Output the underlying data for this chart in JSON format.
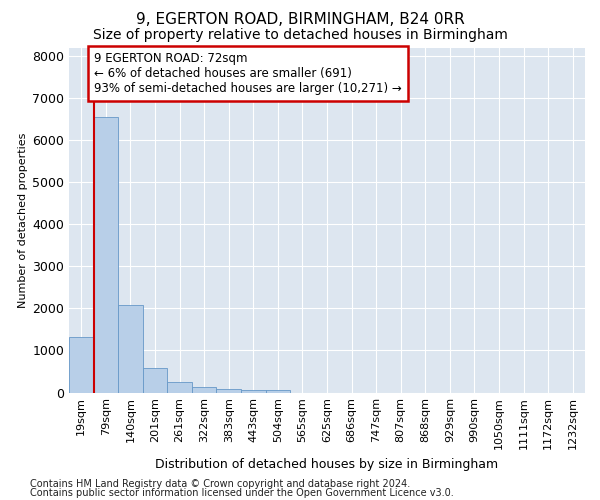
{
  "title": "9, EGERTON ROAD, BIRMINGHAM, B24 0RR",
  "subtitle": "Size of property relative to detached houses in Birmingham",
  "xlabel": "Distribution of detached houses by size in Birmingham",
  "ylabel": "Number of detached properties",
  "footnote1": "Contains HM Land Registry data © Crown copyright and database right 2024.",
  "footnote2": "Contains public sector information licensed under the Open Government Licence v3.0.",
  "annotation_title": "9 EGERTON ROAD: 72sqm",
  "annotation_line2": "← 6% of detached houses are smaller (691)",
  "annotation_line3": "93% of semi-detached houses are larger (10,271) →",
  "bar_categories": [
    "19sqm",
    "79sqm",
    "140sqm",
    "201sqm",
    "261sqm",
    "322sqm",
    "383sqm",
    "443sqm",
    "504sqm",
    "565sqm",
    "625sqm",
    "686sqm",
    "747sqm",
    "807sqm",
    "868sqm",
    "929sqm",
    "990sqm",
    "1050sqm",
    "1111sqm",
    "1172sqm",
    "1232sqm"
  ],
  "bar_values": [
    1310,
    6560,
    2090,
    580,
    260,
    140,
    90,
    55,
    55,
    0,
    0,
    0,
    0,
    0,
    0,
    0,
    0,
    0,
    0,
    0,
    0
  ],
  "bar_color": "#b8cfe8",
  "bar_edge_color": "#6698c8",
  "vline_color": "#cc0000",
  "annotation_box_color": "#cc0000",
  "background_color": "#dde6f0",
  "plot_bg_color": "#dde6f0",
  "ylim": [
    0,
    8200
  ],
  "yticks": [
    0,
    1000,
    2000,
    3000,
    4000,
    5000,
    6000,
    7000,
    8000
  ],
  "grid_color": "#ffffff",
  "title_fontsize": 11,
  "subtitle_fontsize": 10,
  "axis_label_fontsize": 9,
  "ylabel_fontsize": 8,
  "tick_label_fontsize": 8,
  "annotation_fontsize": 8.5,
  "footnote_fontsize": 7
}
